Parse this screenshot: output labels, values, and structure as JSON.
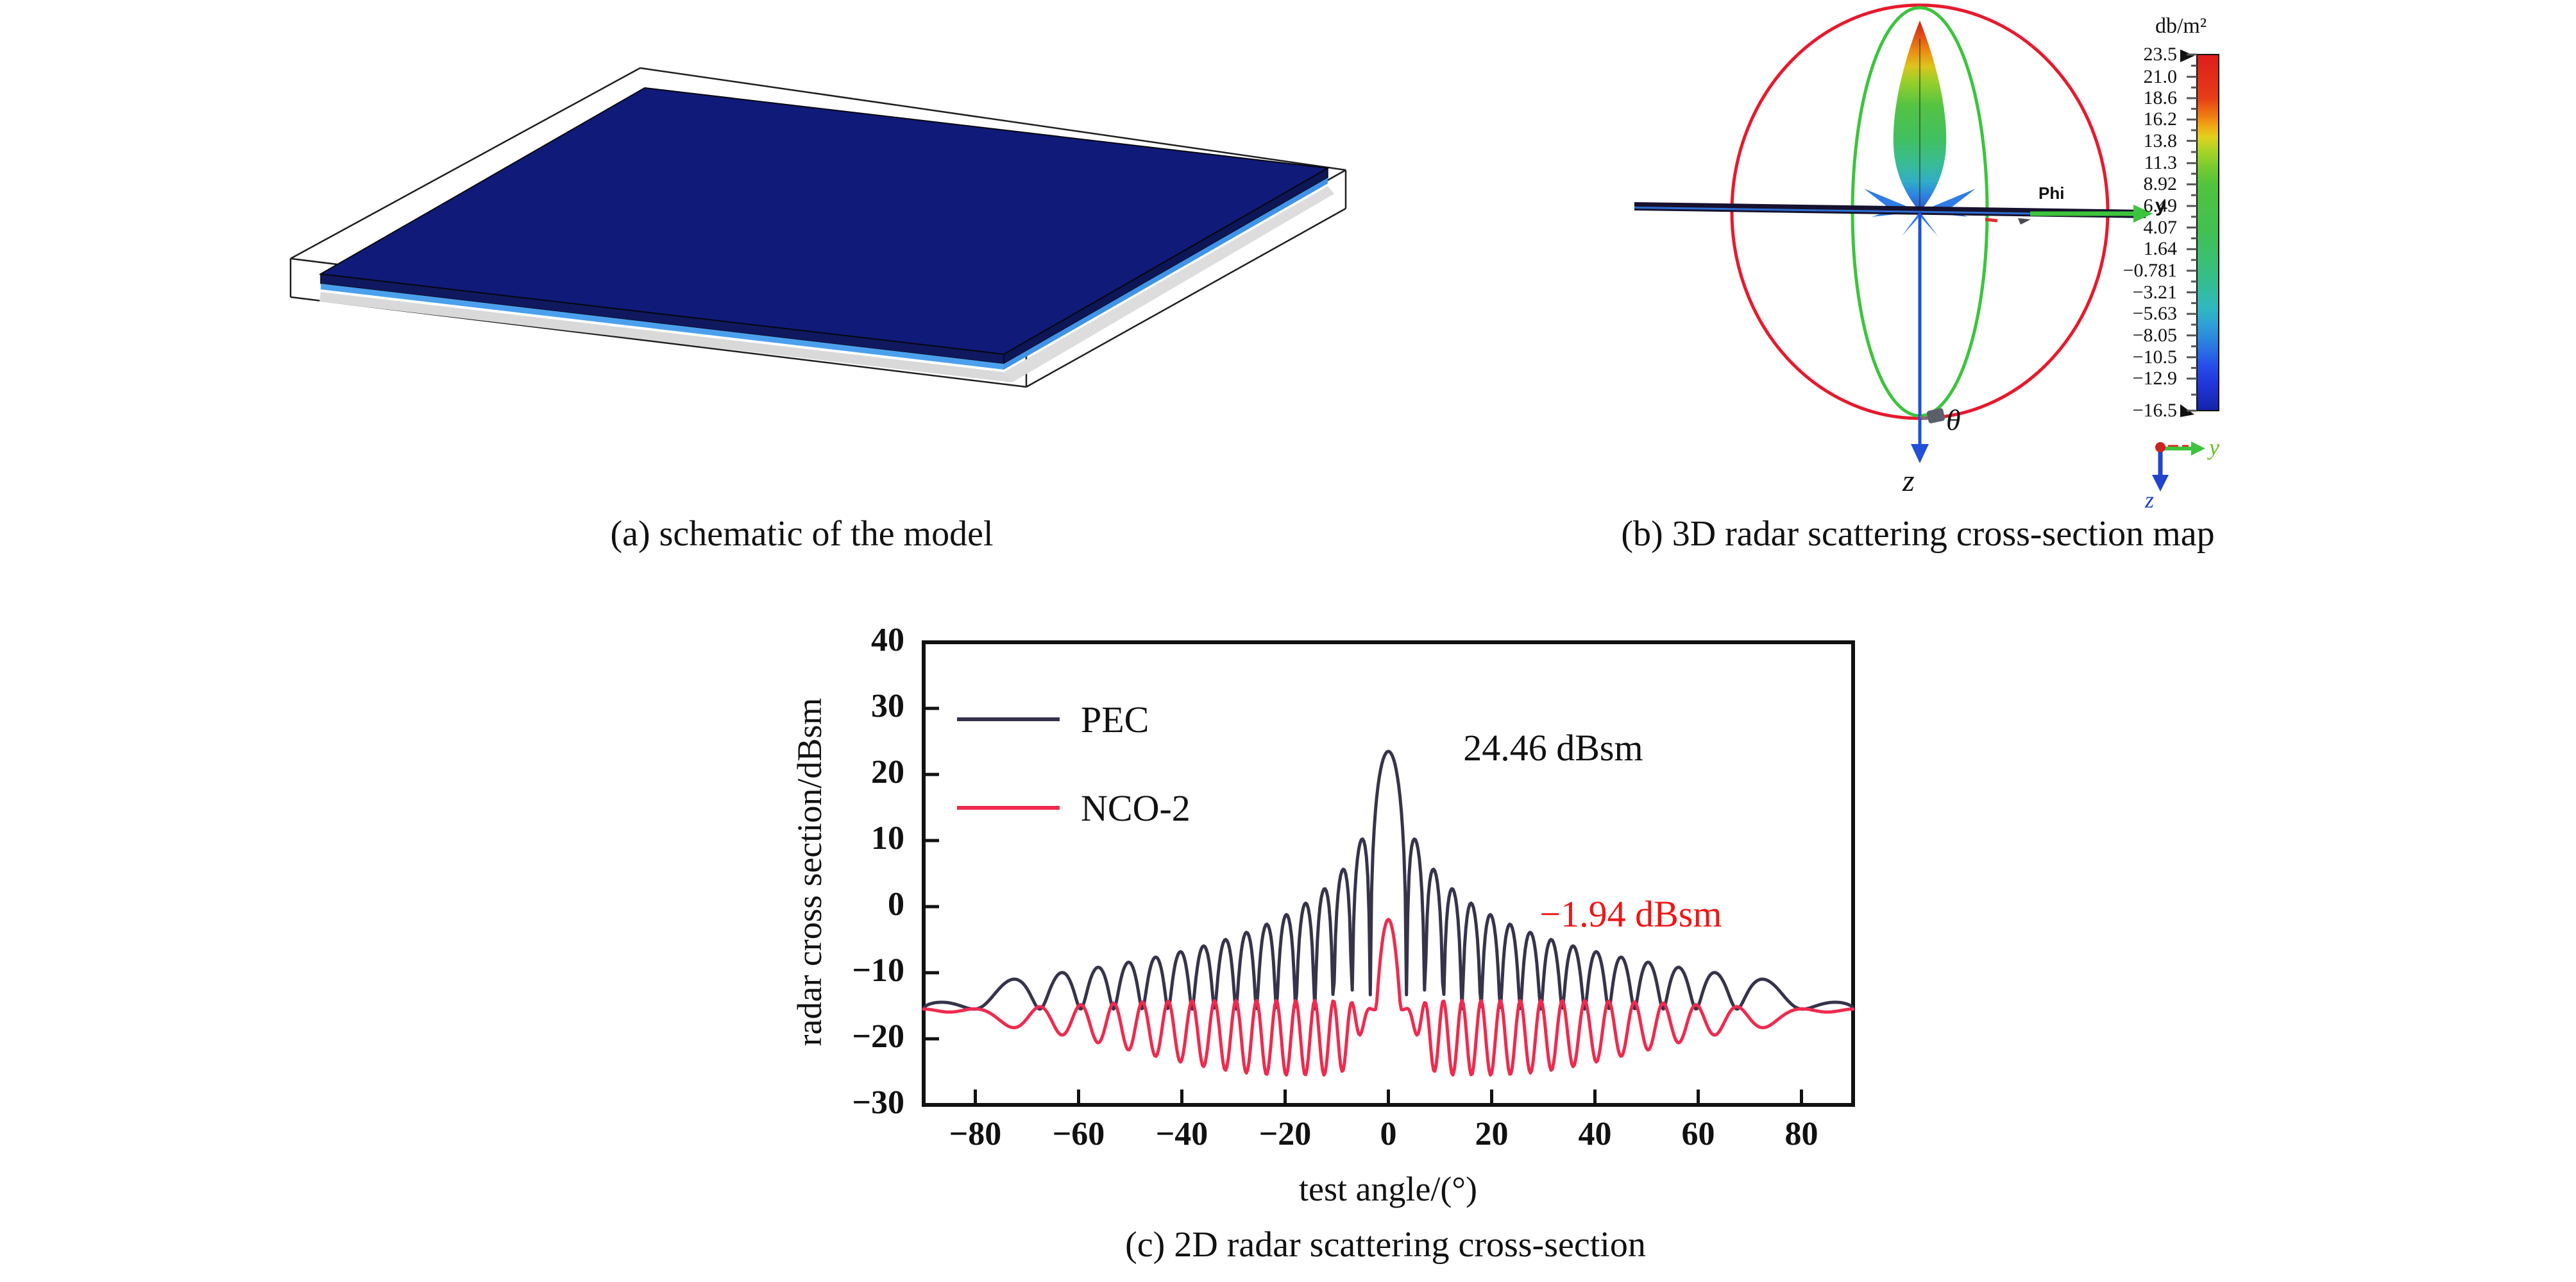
{
  "panel_a": {
    "caption": "(a) schematic of the model",
    "colors": {
      "plate_top": "#101a78",
      "plate_side": "#10195f",
      "plate_edge_stripe": "#4ba0ee",
      "shadow": "#d9d9d9",
      "wireframe": "#1f1f1f"
    }
  },
  "panel_b": {
    "caption": "(b) 3D radar scattering cross-section map",
    "labels": {
      "phi": "Phi",
      "y_arrow": "y",
      "theta": "θ",
      "z_axis": "z",
      "mini_y": "y",
      "mini_z": "z"
    },
    "colors": {
      "outer_ring": "#e8192c",
      "inner_ring": "#3cc43c",
      "z_axis": "#2050d8",
      "plate_bar": "#17112e",
      "plate_bar_stripe": "#2d6fd4",
      "side_spikes": "#2f7ce6",
      "mini_y": "#5fc41e",
      "mini_z": "#2244cc"
    },
    "colorbar": {
      "title": "db/m²",
      "max": 23.5,
      "min": -16.5,
      "ticks": [
        {
          "v": 23.5,
          "label": "23.5"
        },
        {
          "v": 21.0,
          "label": "21.0"
        },
        {
          "v": 18.6,
          "label": "18.6"
        },
        {
          "v": 16.2,
          "label": "16.2"
        },
        {
          "v": 13.8,
          "label": "13.8"
        },
        {
          "v": 11.3,
          "label": "11.3"
        },
        {
          "v": 8.92,
          "label": "8.92"
        },
        {
          "v": 6.49,
          "label": "6.49"
        },
        {
          "v": 4.07,
          "label": "4.07"
        },
        {
          "v": 1.64,
          "label": "1.64"
        },
        {
          "v": -0.781,
          "label": "−0.781"
        },
        {
          "v": -3.21,
          "label": "−3.21"
        },
        {
          "v": -5.63,
          "label": "−5.63"
        },
        {
          "v": -8.05,
          "label": "−8.05"
        },
        {
          "v": -10.5,
          "label": "−10.5"
        },
        {
          "v": -12.9,
          "label": "−12.9"
        },
        {
          "v": -16.5,
          "label": "−16.5"
        }
      ]
    }
  },
  "panel_c": {
    "caption": "(c) 2D radar scattering cross-section"
  },
  "chart_data": {
    "type": "line",
    "xlabel": "test angle/(°)",
    "ylabel": "radar cross section/dBsm",
    "xlim": [
      -90,
      90
    ],
    "ylim": [
      -30,
      40
    ],
    "grid": false,
    "legend_position": "top-left",
    "x_ticks": [
      {
        "v": -80,
        "label": "−80"
      },
      {
        "v": -60,
        "label": "−60"
      },
      {
        "v": -40,
        "label": "−40"
      },
      {
        "v": -20,
        "label": "−20"
      },
      {
        "v": 0,
        "label": "0"
      },
      {
        "v": 20,
        "label": "20"
      },
      {
        "v": 40,
        "label": "40"
      },
      {
        "v": 60,
        "label": "60"
      },
      {
        "v": 80,
        "label": "80"
      }
    ],
    "y_ticks": [
      {
        "v": 40,
        "label": "40"
      },
      {
        "v": 30,
        "label": "30"
      },
      {
        "v": 20,
        "label": "20"
      },
      {
        "v": 10,
        "label": "10"
      },
      {
        "v": 0,
        "label": "0"
      },
      {
        "v": -10,
        "label": "−10"
      },
      {
        "v": -20,
        "label": "−20"
      },
      {
        "v": -30,
        "label": "−30"
      }
    ],
    "baseline_dbsm": -15.5,
    "series": [
      {
        "name": "PEC",
        "color": "#35344a",
        "peak_dbsm": 24.46,
        "peak_angle_deg": 0,
        "model": {
          "kind": "flat_plate_sinc",
          "amplitude_db": 23.5,
          "ka": 51,
          "floor_db": -15.5,
          "cos_power": 0.5,
          "step_deg": 0.25
        },
        "sidelobe_peaks_dbsm": {
          "5.3": 10.4,
          "8.9": 5.6,
          "12.5": 2.7,
          "16.1": 0.5,
          "19.8": -1.3,
          "23.6": -2.8,
          "31.6": -5.2,
          "40.3": -7.1,
          "50.4": -8.9,
          "63.3": -11.2,
          "72.7": -12.9
        }
      },
      {
        "name": "NCO-2",
        "color": "#ef2a4e",
        "peak_dbsm": -1.94,
        "peak_angle_deg": 0,
        "model": {
          "kind": "coated_plate",
          "baseline_db": -15.5,
          "peak_db": -1.94,
          "peak_curvature": 2.46,
          "ka": 51,
          "osc_depth_max": 10,
          "osc_up_max": 1.3,
          "step_deg": 0.25
        },
        "dip_levels_dbsm": {
          "25": -24.9,
          "40": -23.6,
          "52": -20.8,
          "62": -19.6,
          "73": -18.3
        }
      }
    ],
    "annotations": [
      {
        "text": "24.46 dBsm",
        "color": "#111111",
        "x": 14.5,
        "y": 24.0
      },
      {
        "text": "−1.94 dBsm",
        "color": "#f01515",
        "x": 29.3,
        "y": -1.2
      }
    ]
  }
}
